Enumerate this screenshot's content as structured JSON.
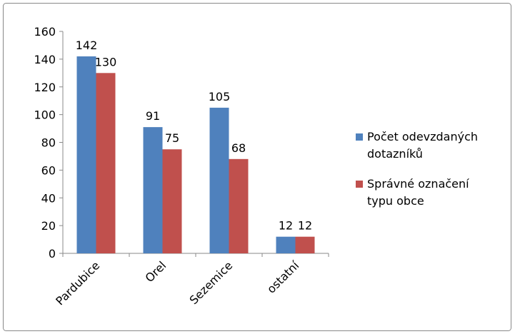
{
  "chart_data": {
    "type": "bar",
    "categories": [
      "Pardubice",
      "Orel",
      "Sezemice",
      "ostatní"
    ],
    "series": [
      {
        "name": "Počet odevzdaných dotazníků",
        "color": "#4f81bd",
        "values": [
          142,
          91,
          105,
          12
        ]
      },
      {
        "name": "Správné označení typu obce",
        "color": "#c0504d",
        "values": [
          130,
          75,
          68,
          12
        ]
      }
    ],
    "ylim": [
      0,
      160
    ],
    "yticks": [
      0,
      20,
      40,
      60,
      80,
      100,
      120,
      140,
      160
    ],
    "grid": false,
    "legend": "right"
  }
}
